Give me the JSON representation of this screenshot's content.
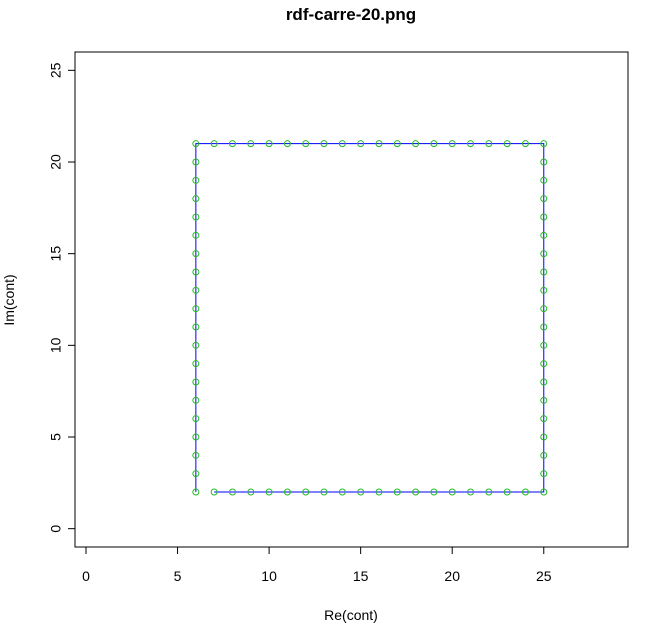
{
  "chart_data": {
    "type": "scatter",
    "title": "rdf-carre-20.png",
    "xlabel": "Re(cont)",
    "ylabel": "Im(cont)",
    "xlim": [
      -0.6,
      29.6
    ],
    "ylim": [
      -1.0,
      26.0
    ],
    "xticks": [
      0,
      5,
      10,
      15,
      20,
      25
    ],
    "yticks": [
      0,
      5,
      10,
      15,
      20,
      25
    ],
    "grid": false,
    "legend": "none",
    "series": [
      {
        "style": "line",
        "color": "#0000ff",
        "x": [
          7,
          8,
          9,
          10,
          11,
          12,
          13,
          14,
          15,
          16,
          17,
          18,
          19,
          20,
          21,
          22,
          23,
          24,
          25,
          25,
          25,
          25,
          25,
          25,
          25,
          25,
          25,
          25,
          25,
          25,
          25,
          25,
          25,
          25,
          25,
          25,
          25,
          25,
          24,
          23,
          22,
          21,
          20,
          19,
          18,
          17,
          16,
          15,
          14,
          13,
          12,
          11,
          10,
          9,
          8,
          7,
          6,
          6,
          6,
          6,
          6,
          6,
          6,
          6,
          6,
          6,
          6,
          6,
          6,
          6,
          6,
          6,
          6,
          6,
          6,
          6
        ],
        "y": [
          2,
          2,
          2,
          2,
          2,
          2,
          2,
          2,
          2,
          2,
          2,
          2,
          2,
          2,
          2,
          2,
          2,
          2,
          2,
          3,
          4,
          5,
          6,
          7,
          8,
          9,
          10,
          11,
          12,
          13,
          14,
          15,
          16,
          17,
          18,
          19,
          20,
          21,
          21,
          21,
          21,
          21,
          21,
          21,
          21,
          21,
          21,
          21,
          21,
          21,
          21,
          21,
          21,
          21,
          21,
          21,
          21,
          20,
          19,
          18,
          17,
          16,
          15,
          14,
          13,
          12,
          11,
          10,
          9,
          8,
          7,
          6,
          5,
          4,
          3,
          2
        ]
      },
      {
        "style": "points",
        "marker": "open-circle",
        "color": "#22bb22",
        "x": [
          7,
          8,
          9,
          10,
          11,
          12,
          13,
          14,
          15,
          16,
          17,
          18,
          19,
          20,
          21,
          22,
          23,
          24,
          25,
          25,
          25,
          25,
          25,
          25,
          25,
          25,
          25,
          25,
          25,
          25,
          25,
          25,
          25,
          25,
          25,
          25,
          25,
          25,
          24,
          23,
          22,
          21,
          20,
          19,
          18,
          17,
          16,
          15,
          14,
          13,
          12,
          11,
          10,
          9,
          8,
          7,
          6,
          6,
          6,
          6,
          6,
          6,
          6,
          6,
          6,
          6,
          6,
          6,
          6,
          6,
          6,
          6,
          6,
          6,
          6,
          6
        ],
        "y": [
          2,
          2,
          2,
          2,
          2,
          2,
          2,
          2,
          2,
          2,
          2,
          2,
          2,
          2,
          2,
          2,
          2,
          2,
          2,
          3,
          4,
          5,
          6,
          7,
          8,
          9,
          10,
          11,
          12,
          13,
          14,
          15,
          16,
          17,
          18,
          19,
          20,
          21,
          21,
          21,
          21,
          21,
          21,
          21,
          21,
          21,
          21,
          21,
          21,
          21,
          21,
          21,
          21,
          21,
          21,
          21,
          21,
          20,
          19,
          18,
          17,
          16,
          15,
          14,
          13,
          12,
          11,
          10,
          9,
          8,
          7,
          6,
          5,
          4,
          3,
          2
        ]
      }
    ]
  }
}
